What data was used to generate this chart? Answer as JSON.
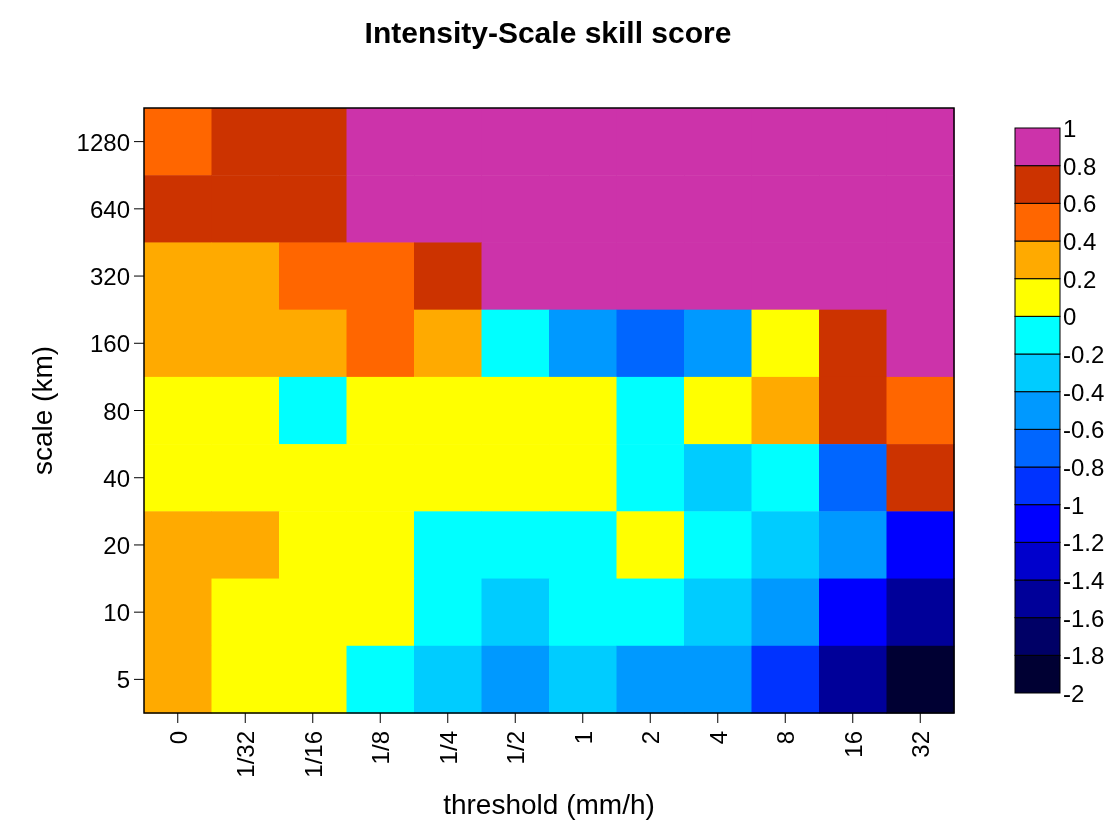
{
  "chart_data": {
    "type": "heatmap",
    "title": "Intensity-Scale skill score",
    "xlabel": "threshold (mm/h)",
    "ylabel": "scale (km)",
    "categories": [
      "0",
      "1/32",
      "1/16",
      "1/8",
      "1/4",
      "1/2",
      "1",
      "2",
      "4",
      "8",
      "16",
      "32"
    ],
    "y_categories": [
      "1280",
      "640",
      "320",
      "160",
      "80",
      "40",
      "20",
      "10",
      "5"
    ],
    "cells": [
      [
        0.5,
        0.7,
        0.7,
        0.9,
        0.9,
        0.9,
        0.9,
        0.9,
        0.9,
        0.9,
        0.9,
        0.9
      ],
      [
        0.7,
        0.7,
        0.7,
        0.9,
        0.9,
        0.9,
        0.9,
        0.9,
        0.9,
        0.9,
        0.9,
        0.9
      ],
      [
        0.3,
        0.3,
        0.5,
        0.5,
        0.7,
        0.9,
        0.9,
        0.9,
        0.9,
        0.9,
        0.9,
        0.9
      ],
      [
        0.3,
        0.3,
        0.3,
        0.5,
        0.3,
        -0.1,
        -0.5,
        -0.7,
        -0.5,
        0.1,
        0.7,
        0.9
      ],
      [
        0.1,
        0.1,
        -0.1,
        0.1,
        0.1,
        0.1,
        0.1,
        -0.1,
        0.1,
        0.3,
        0.7,
        0.5
      ],
      [
        0.1,
        0.1,
        0.1,
        0.1,
        0.1,
        0.1,
        0.1,
        -0.1,
        -0.3,
        -0.1,
        -0.7,
        0.7
      ],
      [
        0.3,
        0.3,
        0.1,
        0.1,
        -0.1,
        -0.1,
        -0.1,
        0.1,
        -0.1,
        -0.3,
        -0.5,
        -1.1
      ],
      [
        0.3,
        0.1,
        0.1,
        0.1,
        -0.1,
        -0.3,
        -0.1,
        -0.1,
        -0.3,
        -0.5,
        -1.1,
        -1.5
      ],
      [
        0.3,
        0.1,
        0.1,
        -0.1,
        -0.3,
        -0.5,
        -0.3,
        -0.5,
        -0.5,
        -0.9,
        -1.5,
        -1.9
      ]
    ],
    "clim": [
      -2,
      1
    ],
    "cticks": [
      -2,
      -1.8,
      -1.6,
      -1.4,
      -1.2,
      -1,
      -0.8,
      -0.6,
      -0.4,
      -0.2,
      0,
      0.2,
      0.4,
      0.6,
      0.8,
      1
    ],
    "colors": [
      "#000033",
      "#000066",
      "#000099",
      "#0000cc",
      "#0000ff",
      "#0033ff",
      "#0066ff",
      "#0099ff",
      "#00ccff",
      "#00ffff",
      "#ffff00",
      "#ffaa00",
      "#ff6600",
      "#cc3300",
      "#cc33aa"
    ]
  }
}
